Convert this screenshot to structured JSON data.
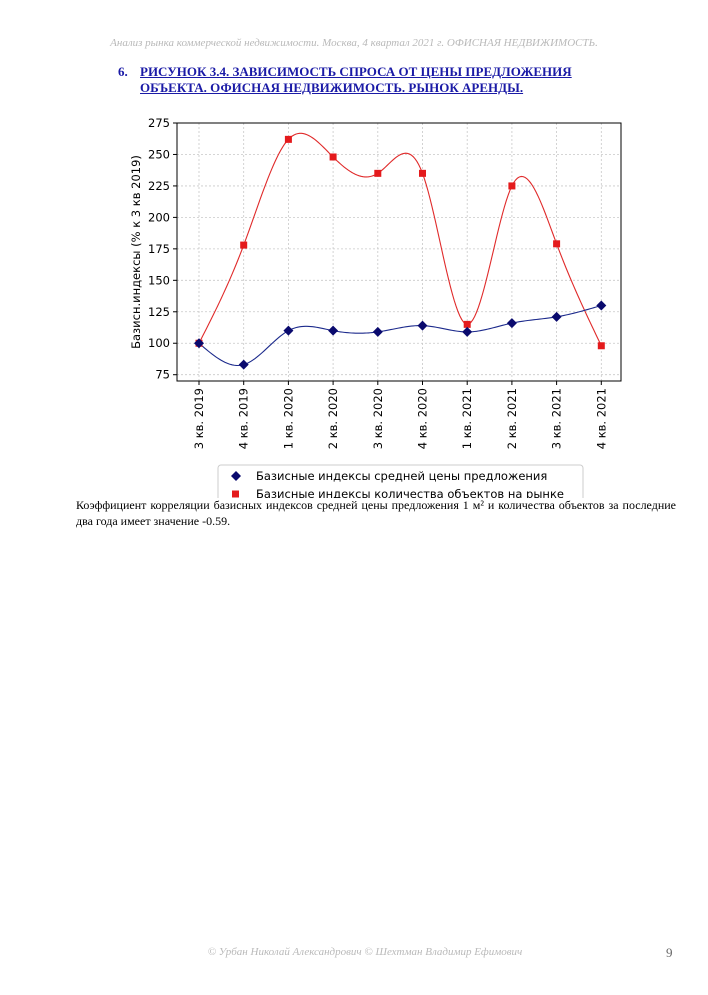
{
  "header": {
    "text": "Анализ рынка коммерческой недвижимости.   Москва,  4 квартал 2021 г.   ОФИСНАЯ НЕДВИЖИМОСТЬ."
  },
  "figure": {
    "number": "6.",
    "title": "РИСУНОК 3.4. ЗАВИСИМОСТЬ СПРОСА ОТ ЦЕНЫ ПРЕДЛОЖЕНИЯ ОБЪЕКТА.  ОФИСНАЯ НЕДВИЖИМОСТЬ. РЫНОК АРЕНДЫ."
  },
  "chart_data": {
    "type": "line",
    "ylabel": "Базисн.индексы (% к 3 кв 2019)",
    "xlabel": "",
    "categories": [
      "3 кв. 2019",
      "4 кв. 2019",
      "1 кв. 2020",
      "2 кв. 2020",
      "3 кв. 2020",
      "4 кв. 2020",
      "1 кв. 2021",
      "2 кв. 2021",
      "3 кв. 2021",
      "4 кв. 2021"
    ],
    "ylim": [
      70,
      275
    ],
    "yticks": [
      75,
      100,
      125,
      150,
      175,
      200,
      225,
      250,
      275
    ],
    "grid": true,
    "legend_position": "bottom",
    "series": [
      {
        "name": "Базисные индексы средней цены предложения",
        "marker": "diamond",
        "color": "#0a0a6e",
        "line_color": "#1c2a8c",
        "values": [
          100,
          83,
          110,
          110,
          109,
          114,
          109,
          116,
          121,
          130
        ]
      },
      {
        "name": "Базисные индексы количества объектов на рынке",
        "marker": "square",
        "color": "#e41a1c",
        "line_color": "#e02a2a",
        "values": [
          100,
          178,
          262,
          248,
          235,
          235,
          115,
          225,
          179,
          98
        ]
      }
    ]
  },
  "paragraph": {
    "text": "Коэффициент корреляции базисных индексов средней цены предложения 1 м² и количества объектов за последние два года имеет значение -0.59."
  },
  "footer": {
    "text": "© Урбан Николай Александрович   © Шехтман Владимир Ефимович",
    "page_number": "9"
  }
}
